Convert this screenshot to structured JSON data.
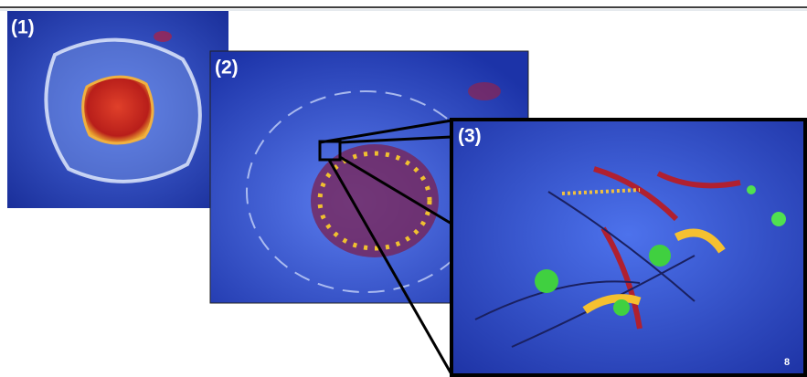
{
  "panels": [
    {
      "label": "(1)"
    },
    {
      "label": "(2)"
    },
    {
      "label": "(3)",
      "page_number": "8"
    }
  ]
}
